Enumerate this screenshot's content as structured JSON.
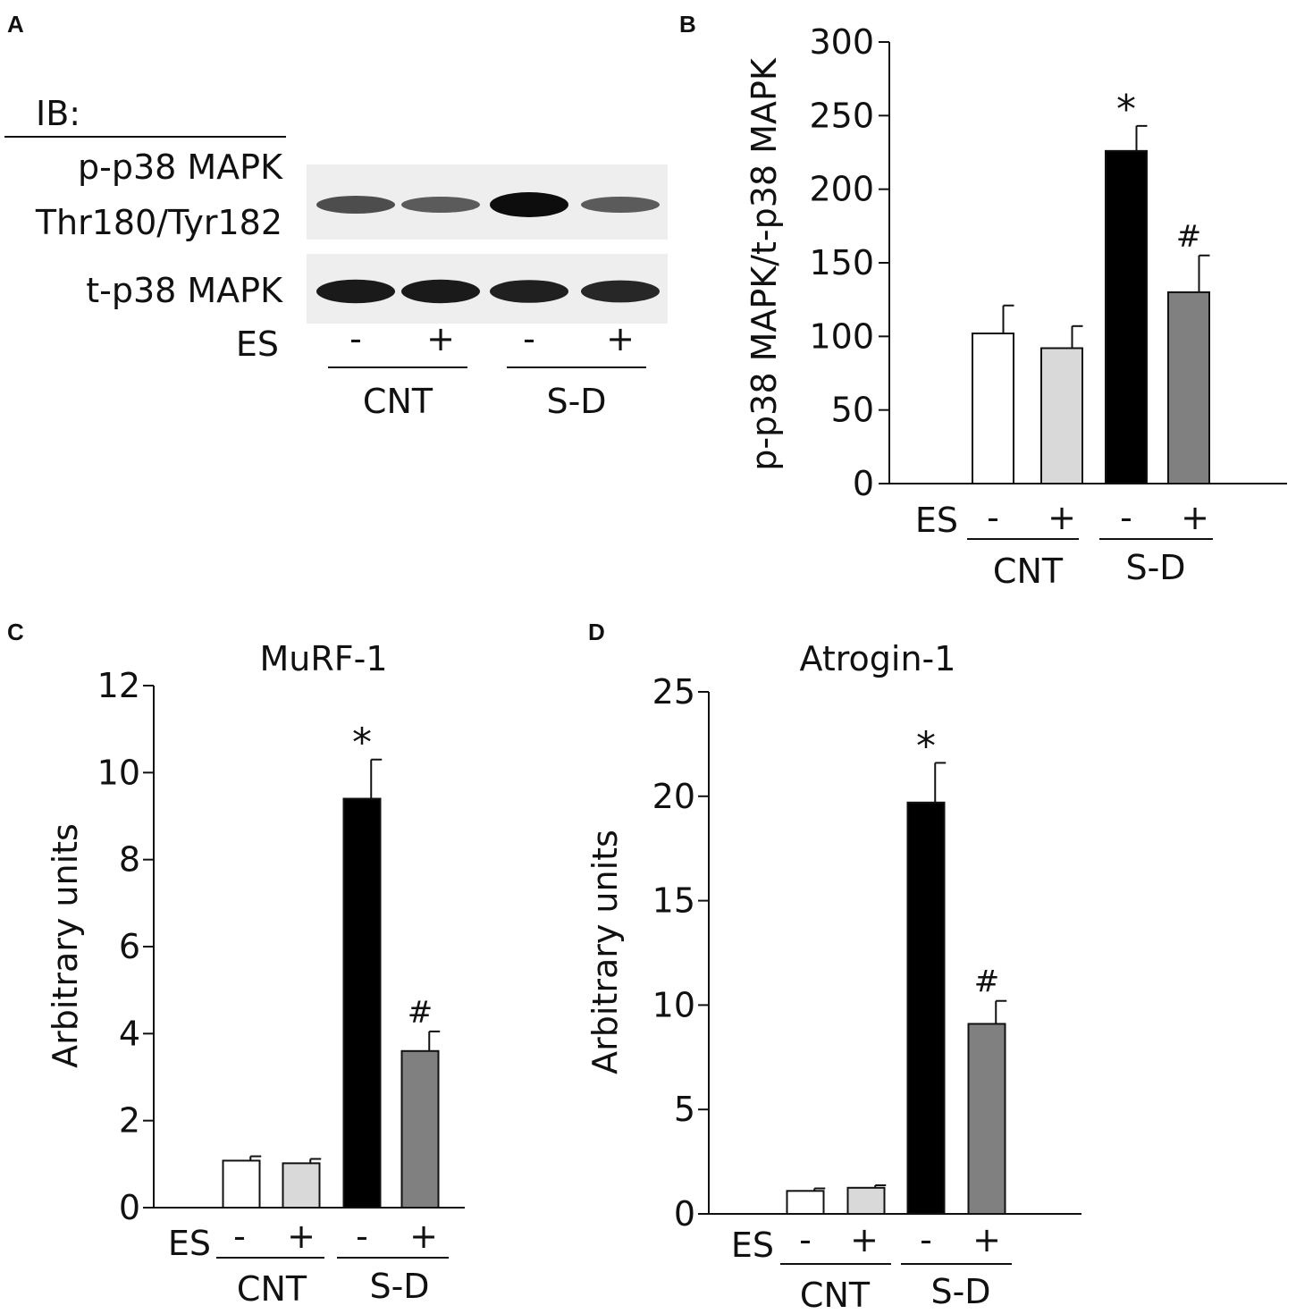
{
  "colors": {
    "white_bar": "#ffffff",
    "light_gray_bar": "#d9d9d9",
    "black_bar": "#000000",
    "dark_gray_bar": "#808080",
    "axis": "#111111"
  },
  "panel_a": {
    "panel_label": "A",
    "ib_label": "IB:",
    "row1_line1": "p-p38 MAPK",
    "row1_line2": "Thr180/Tyr182",
    "row2_label": "t-p38 MAPK",
    "es_label": "ES",
    "lane_signs": [
      "-",
      "+",
      "-",
      "+"
    ],
    "groups": [
      "CNT",
      "S-D"
    ],
    "blot_top_intensity": [
      0.55,
      0.45,
      1.0,
      0.45
    ],
    "blot_bottom_intensity": [
      0.9,
      0.9,
      0.85,
      0.8
    ]
  },
  "chart_data": [
    {
      "panel": "B",
      "type": "bar",
      "title": "",
      "ylabel": "p-p38 MAPK/t-p38 MAPK",
      "ylim": [
        0,
        300
      ],
      "yticks": [
        0,
        50,
        100,
        150,
        200,
        250,
        300
      ],
      "es_label": "ES",
      "es_signs": [
        "-",
        "+",
        "-",
        "+"
      ],
      "groups": [
        "CNT",
        "S-D"
      ],
      "values": [
        102,
        92,
        226,
        130
      ],
      "errors": [
        19,
        15,
        17,
        25
      ],
      "annotations": [
        "",
        "",
        "*",
        "#"
      ]
    },
    {
      "panel": "C",
      "type": "bar",
      "title": "MuRF-1",
      "ylabel": "Arbitrary units",
      "ylim": [
        0,
        12
      ],
      "yticks": [
        0,
        2,
        4,
        6,
        8,
        10,
        12
      ],
      "es_label": "ES",
      "es_signs": [
        "-",
        "+",
        "-",
        "+"
      ],
      "groups": [
        "CNT",
        "S-D"
      ],
      "values": [
        1.08,
        1.02,
        9.4,
        3.6
      ],
      "errors": [
        0.1,
        0.1,
        0.9,
        0.45
      ],
      "annotations": [
        "",
        "",
        "*",
        "#"
      ]
    },
    {
      "panel": "D",
      "type": "bar",
      "title": "Atrogin-1",
      "ylabel": "Arbitrary units",
      "ylim": [
        0,
        25
      ],
      "yticks": [
        0,
        5,
        10,
        15,
        20,
        25
      ],
      "es_label": "ES",
      "es_signs": [
        "-",
        "+",
        "-",
        "+"
      ],
      "groups": [
        "CNT",
        "S-D"
      ],
      "values": [
        1.1,
        1.25,
        19.7,
        9.1
      ],
      "errors": [
        0.12,
        0.12,
        1.9,
        1.1
      ],
      "annotations": [
        "",
        "",
        "*",
        "#"
      ]
    }
  ]
}
